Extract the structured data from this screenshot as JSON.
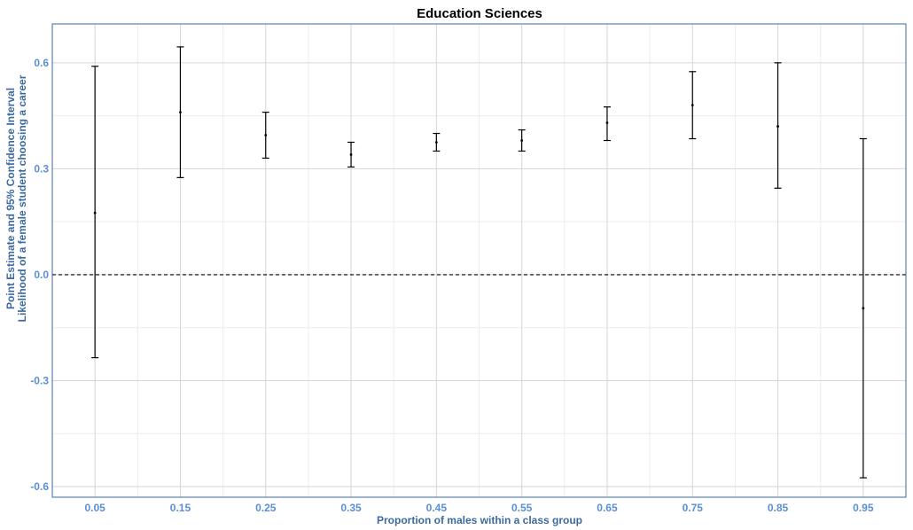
{
  "colors": {
    "tick_text": "#5b8fd4",
    "axis_title": "#3d6a9e",
    "panel_border": "#3d6a9e",
    "grid_major": "#d6d6d6",
    "grid_minor": "#ececec",
    "marks": "#000000"
  },
  "chart_data": {
    "type": "errorbar",
    "title": "Education Sciences",
    "xlabel": "Proportion of males within a class group",
    "ylabel_lines": [
      "Point Estimate and 95% Confidence Interval",
      "Likelihood of a female student choosing a career"
    ],
    "xlim": [
      0.0,
      1.0
    ],
    "ylim": [
      -0.63,
      0.71
    ],
    "x_ticks": [
      0.05,
      0.15,
      0.25,
      0.35,
      0.45,
      0.55,
      0.65,
      0.75,
      0.85,
      0.95
    ],
    "x_tick_labels": [
      "0.05",
      "0.15",
      "0.25",
      "0.35",
      "0.45",
      "0.55",
      "0.65",
      "0.75",
      "0.85",
      "0.95"
    ],
    "y_ticks": [
      -0.6,
      -0.3,
      0.0,
      0.3,
      0.6
    ],
    "y_tick_labels": [
      "-0.6",
      "-0.3",
      "0.0",
      "0.3",
      "0.6"
    ],
    "reference_line": {
      "y": 0.0,
      "style": "dashed"
    },
    "grid": true,
    "points": [
      {
        "x": 0.05,
        "estimate": 0.175,
        "lower": -0.235,
        "upper": 0.59
      },
      {
        "x": 0.15,
        "estimate": 0.46,
        "lower": 0.275,
        "upper": 0.645
      },
      {
        "x": 0.25,
        "estimate": 0.395,
        "lower": 0.33,
        "upper": 0.46
      },
      {
        "x": 0.35,
        "estimate": 0.34,
        "lower": 0.305,
        "upper": 0.375
      },
      {
        "x": 0.45,
        "estimate": 0.375,
        "lower": 0.35,
        "upper": 0.4
      },
      {
        "x": 0.55,
        "estimate": 0.38,
        "lower": 0.35,
        "upper": 0.41
      },
      {
        "x": 0.65,
        "estimate": 0.43,
        "lower": 0.38,
        "upper": 0.475
      },
      {
        "x": 0.75,
        "estimate": 0.48,
        "lower": 0.385,
        "upper": 0.575
      },
      {
        "x": 0.85,
        "estimate": 0.42,
        "lower": 0.245,
        "upper": 0.6
      },
      {
        "x": 0.95,
        "estimate": -0.095,
        "lower": -0.575,
        "upper": 0.385
      }
    ]
  }
}
